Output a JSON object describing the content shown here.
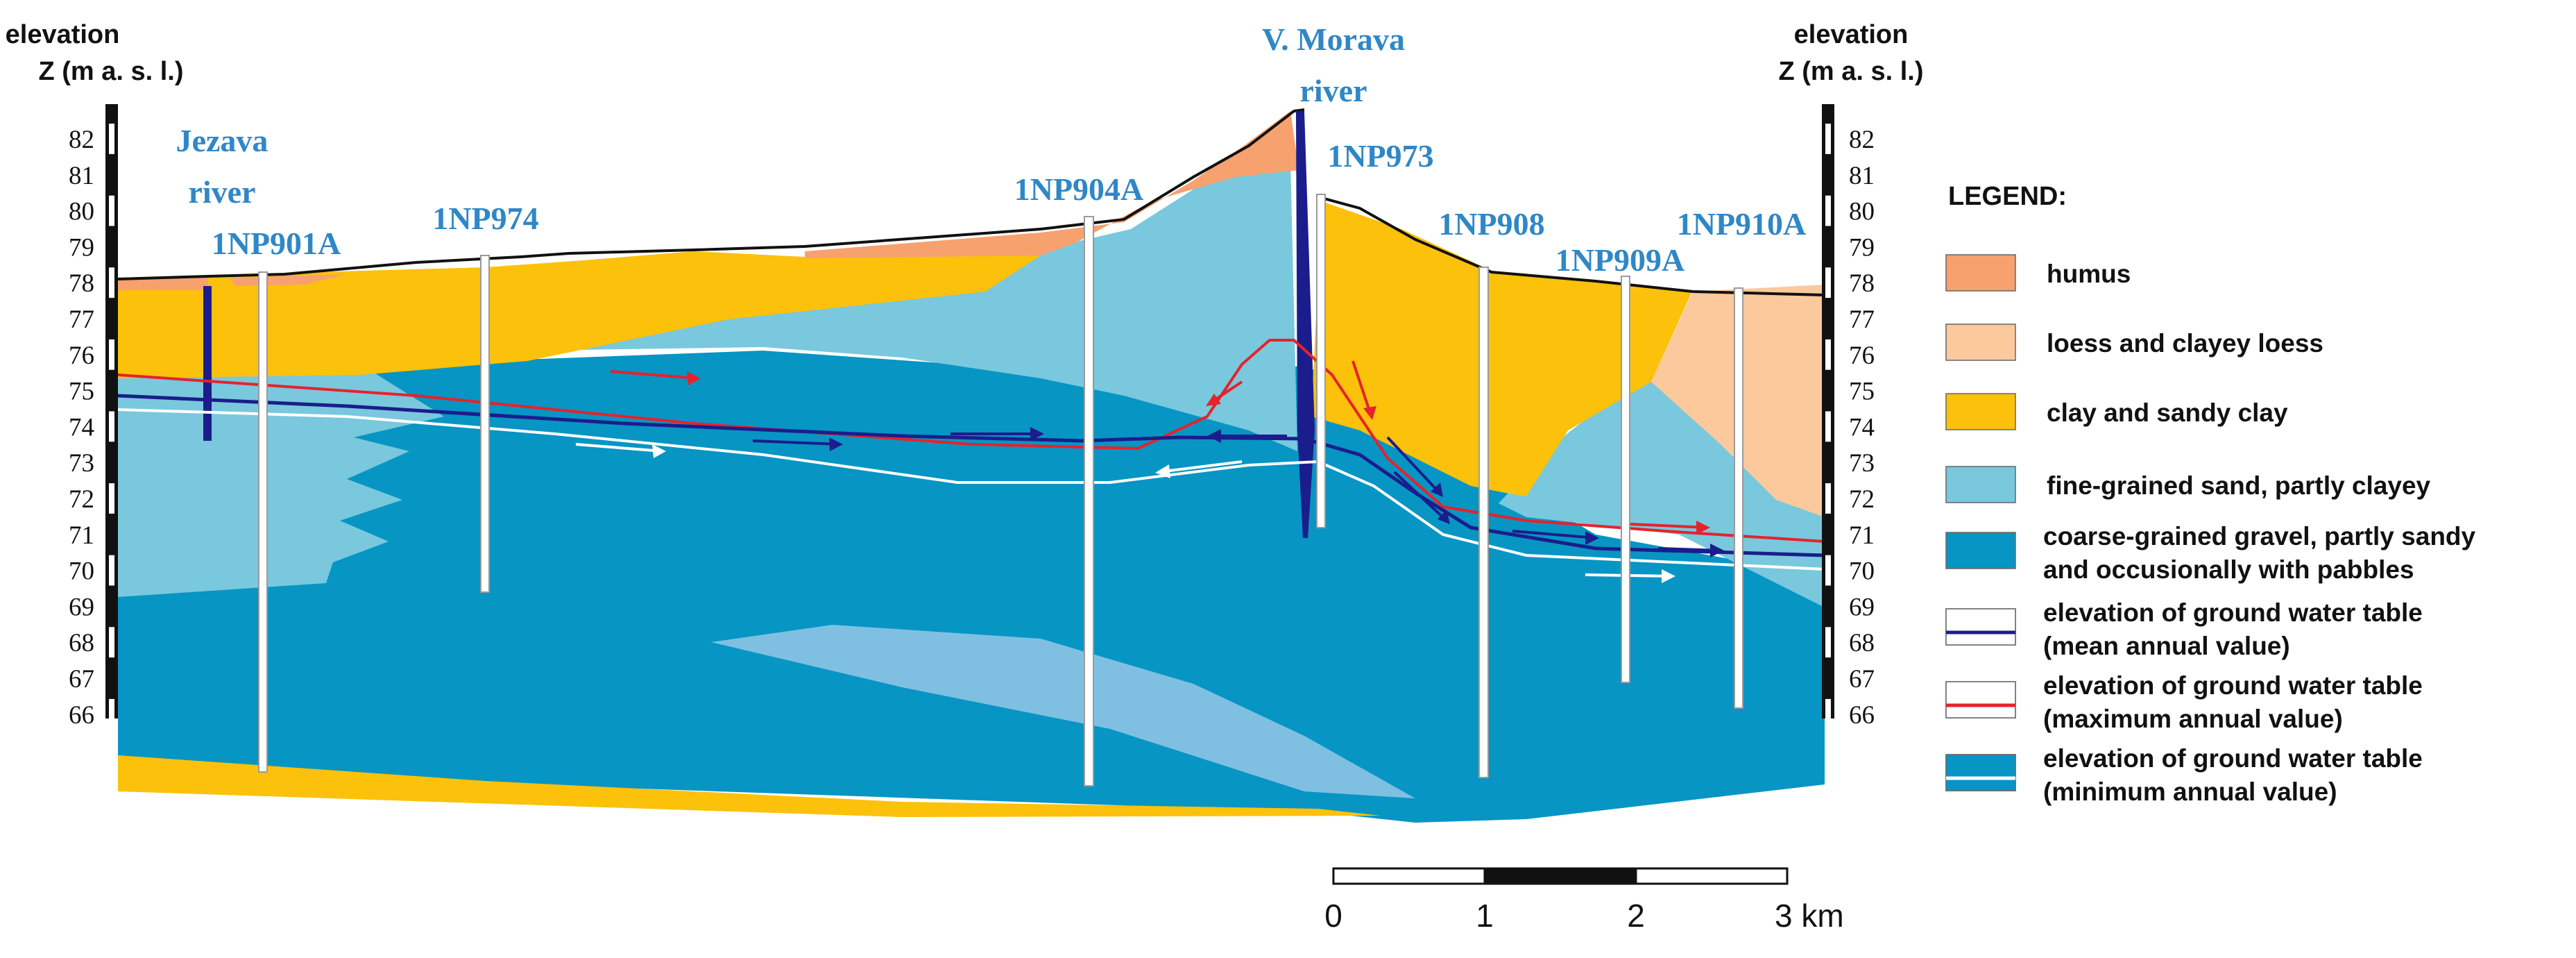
{
  "axis_left": {
    "title_line1": "elevation",
    "title_line2": "Z (m a. s. l.)"
  },
  "axis_right": {
    "title_line1": "elevation",
    "title_line2": "Z (m a. s. l.)"
  },
  "axis_ticks": [
    "82",
    "81",
    "80",
    "79",
    "78",
    "77",
    "76",
    "75",
    "74",
    "73",
    "72",
    "71",
    "70",
    "69",
    "68",
    "67",
    "66"
  ],
  "rivers": [
    {
      "line1": "Jezava",
      "line2": "river"
    },
    {
      "line1": "V. Morava",
      "line2": "river"
    }
  ],
  "wells": [
    "1NP901A",
    "1NP974",
    "1NP904A",
    "1NP973",
    "1NP908",
    "1NP909A",
    "1NP910A"
  ],
  "legend": {
    "title": "LEGEND:",
    "items": [
      {
        "color": "#f7a16e",
        "lines": [
          "humus"
        ]
      },
      {
        "color": "#fbc99c",
        "lines": [
          "loess and clayey loess"
        ]
      },
      {
        "color": "#fcc10a",
        "lines": [
          "clay and sandy clay"
        ]
      },
      {
        "color": "#79c8dd",
        "lines": [
          "fine-grained sand, partly clayey"
        ]
      },
      {
        "color": "#0795c4",
        "lines": [
          "coarse-grained gravel, partly sandy",
          "and occusionally with pabbles"
        ]
      },
      {
        "color": "#1b1d8c",
        "lines": [
          "elevation of ground water table",
          "(mean annual value)"
        ]
      },
      {
        "color": "#e5232a",
        "lines": [
          "elevation of ground water table",
          "(maximum annual value)"
        ]
      },
      {
        "color": "#ffffff",
        "lines": [
          "elevation of ground water table",
          "(minimum annual value)"
        ]
      }
    ]
  },
  "scale_bar": {
    "labels": [
      "0",
      "1",
      "2",
      "3 km"
    ]
  }
}
